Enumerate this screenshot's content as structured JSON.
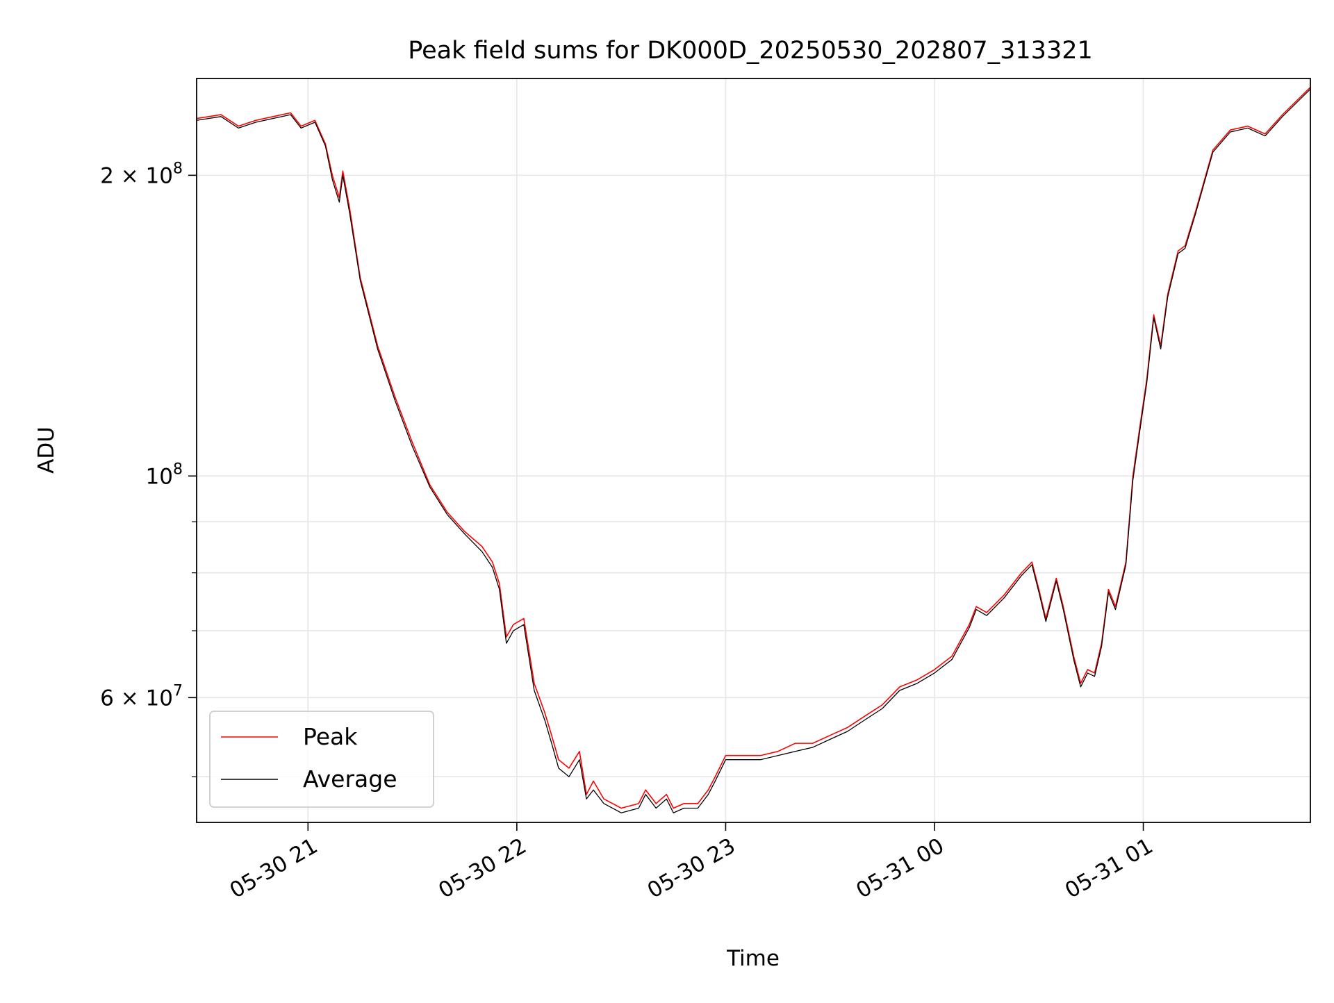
{
  "chart_data": {
    "type": "line",
    "title": "Peak field sums for DK000D_20250530_202807_313321",
    "xlabel": "Time",
    "ylabel": "ADU",
    "yscale": "log",
    "xlim": [
      "2025-05-30 20:28",
      "2025-05-31 01:48"
    ],
    "ylim": [
      45000000,
      250000000
    ],
    "grid": true,
    "legend_position": "lower-left",
    "x_ticks": [
      {
        "value": "2025-05-30 21:00",
        "label": "05-30 21"
      },
      {
        "value": "2025-05-30 22:00",
        "label": "05-30 22"
      },
      {
        "value": "2025-05-30 23:00",
        "label": "05-30 23"
      },
      {
        "value": "2025-05-31 00:00",
        "label": "05-31 00"
      },
      {
        "value": "2025-05-31 01:00",
        "label": "05-31 01"
      }
    ],
    "y_major_ticks": [
      {
        "value": 60000000,
        "label_base": "6 × 10",
        "label_exp": "7"
      },
      {
        "value": 100000000,
        "label_base": "10",
        "label_exp": "8"
      },
      {
        "value": 200000000,
        "label_base": "2 × 10",
        "label_exp": "8"
      }
    ],
    "y_minor_ticks": [
      50000000,
      70000000,
      80000000,
      90000000
    ],
    "series": [
      {
        "name": "Peak",
        "color": "#ff0000",
        "x": [
          "2025-05-30 20:28",
          "2025-05-30 20:35",
          "2025-05-30 20:40",
          "2025-05-30 20:45",
          "2025-05-30 20:50",
          "2025-05-30 20:55",
          "2025-05-30 20:58",
          "2025-05-30 21:02",
          "2025-05-30 21:05",
          "2025-05-30 21:07",
          "2025-05-30 21:09",
          "2025-05-30 21:10",
          "2025-05-30 21:12",
          "2025-05-30 21:15",
          "2025-05-30 21:20",
          "2025-05-30 21:25",
          "2025-05-30 21:30",
          "2025-05-30 21:35",
          "2025-05-30 21:40",
          "2025-05-30 21:45",
          "2025-05-30 21:50",
          "2025-05-30 21:53",
          "2025-05-30 21:55",
          "2025-05-30 21:57",
          "2025-05-30 21:59",
          "2025-05-30 22:02",
          "2025-05-30 22:05",
          "2025-05-30 22:08",
          "2025-05-30 22:10",
          "2025-05-30 22:12",
          "2025-05-30 22:15",
          "2025-05-30 22:18",
          "2025-05-30 22:20",
          "2025-05-30 22:22",
          "2025-05-30 22:25",
          "2025-05-30 22:30",
          "2025-05-30 22:35",
          "2025-05-30 22:37",
          "2025-05-30 22:40",
          "2025-05-30 22:43",
          "2025-05-30 22:45",
          "2025-05-30 22:48",
          "2025-05-30 22:52",
          "2025-05-30 22:55",
          "2025-05-30 22:57",
          "2025-05-30 23:00",
          "2025-05-30 23:05",
          "2025-05-30 23:10",
          "2025-05-30 23:15",
          "2025-05-30 23:20",
          "2025-05-30 23:25",
          "2025-05-30 23:30",
          "2025-05-30 23:35",
          "2025-05-30 23:40",
          "2025-05-30 23:45",
          "2025-05-30 23:50",
          "2025-05-30 23:55",
          "2025-05-31 00:00",
          "2025-05-31 00:05",
          "2025-05-31 00:10",
          "2025-05-31 00:12",
          "2025-05-31 00:15",
          "2025-05-31 00:20",
          "2025-05-31 00:25",
          "2025-05-31 00:28",
          "2025-05-31 00:30",
          "2025-05-31 00:32",
          "2025-05-31 00:35",
          "2025-05-31 00:37",
          "2025-05-31 00:40",
          "2025-05-31 00:42",
          "2025-05-31 00:44",
          "2025-05-31 00:46",
          "2025-05-31 00:48",
          "2025-05-31 00:50",
          "2025-05-31 00:52",
          "2025-05-31 00:55",
          "2025-05-31 00:57",
          "2025-05-31 00:59",
          "2025-05-31 01:01",
          "2025-05-31 01:03",
          "2025-05-31 01:05",
          "2025-05-31 01:07",
          "2025-05-31 01:10",
          "2025-05-31 01:12",
          "2025-05-31 01:15",
          "2025-05-31 01:20",
          "2025-05-31 01:25",
          "2025-05-31 01:30",
          "2025-05-31 01:35",
          "2025-05-31 01:40",
          "2025-05-31 01:48"
        ],
        "y": [
          228000000,
          230000000,
          224000000,
          227000000,
          229000000,
          231000000,
          224000000,
          227000000,
          215000000,
          200000000,
          190000000,
          202000000,
          185000000,
          158000000,
          135000000,
          120000000,
          108000000,
          98000000,
          92000000,
          88000000,
          85000000,
          82000000,
          78000000,
          69000000,
          71000000,
          72000000,
          62000000,
          58000000,
          55000000,
          52000000,
          51000000,
          53000000,
          48000000,
          49500000,
          47500000,
          46500000,
          47000000,
          48500000,
          47000000,
          48000000,
          46500000,
          47000000,
          47000000,
          48500000,
          50000000,
          52500000,
          52500000,
          52500000,
          53000000,
          54000000,
          54000000,
          55000000,
          56000000,
          57500000,
          59000000,
          61500000,
          62500000,
          64000000,
          66000000,
          71000000,
          74000000,
          73000000,
          76000000,
          80000000,
          82000000,
          77000000,
          72000000,
          79000000,
          74000000,
          66000000,
          62000000,
          64000000,
          63500000,
          68000000,
          77000000,
          74000000,
          82000000,
          100000000,
          112000000,
          125000000,
          145000000,
          135000000,
          152000000,
          168000000,
          170000000,
          184000000,
          212000000,
          222000000,
          224000000,
          220000000,
          230000000,
          245000000
        ]
      },
      {
        "name": "Average",
        "color": "#000000",
        "x": [
          "2025-05-30 20:28",
          "2025-05-30 20:35",
          "2025-05-30 20:40",
          "2025-05-30 20:45",
          "2025-05-30 20:50",
          "2025-05-30 20:55",
          "2025-05-30 20:58",
          "2025-05-30 21:02",
          "2025-05-30 21:05",
          "2025-05-30 21:07",
          "2025-05-30 21:09",
          "2025-05-30 21:10",
          "2025-05-30 21:12",
          "2025-05-30 21:15",
          "2025-05-30 21:20",
          "2025-05-30 21:25",
          "2025-05-30 21:30",
          "2025-05-30 21:35",
          "2025-05-30 21:40",
          "2025-05-30 21:45",
          "2025-05-30 21:50",
          "2025-05-30 21:53",
          "2025-05-30 21:55",
          "2025-05-30 21:57",
          "2025-05-30 21:59",
          "2025-05-30 22:02",
          "2025-05-30 22:05",
          "2025-05-30 22:08",
          "2025-05-30 22:10",
          "2025-05-30 22:12",
          "2025-05-30 22:15",
          "2025-05-30 22:18",
          "2025-05-30 22:20",
          "2025-05-30 22:22",
          "2025-05-30 22:25",
          "2025-05-30 22:30",
          "2025-05-30 22:35",
          "2025-05-30 22:37",
          "2025-05-30 22:40",
          "2025-05-30 22:43",
          "2025-05-30 22:45",
          "2025-05-30 22:48",
          "2025-05-30 22:52",
          "2025-05-30 22:55",
          "2025-05-30 22:57",
          "2025-05-30 23:00",
          "2025-05-30 23:05",
          "2025-05-30 23:10",
          "2025-05-30 23:15",
          "2025-05-30 23:20",
          "2025-05-30 23:25",
          "2025-05-30 23:30",
          "2025-05-30 23:35",
          "2025-05-30 23:40",
          "2025-05-30 23:45",
          "2025-05-30 23:50",
          "2025-05-30 23:55",
          "2025-05-31 00:00",
          "2025-05-31 00:05",
          "2025-05-31 00:10",
          "2025-05-31 00:12",
          "2025-05-31 00:15",
          "2025-05-31 00:20",
          "2025-05-31 00:25",
          "2025-05-31 00:28",
          "2025-05-31 00:30",
          "2025-05-31 00:32",
          "2025-05-31 00:35",
          "2025-05-31 00:37",
          "2025-05-31 00:40",
          "2025-05-31 00:42",
          "2025-05-31 00:44",
          "2025-05-31 00:46",
          "2025-05-31 00:48",
          "2025-05-31 00:50",
          "2025-05-31 00:52",
          "2025-05-31 00:55",
          "2025-05-31 00:57",
          "2025-05-31 00:59",
          "2025-05-31 01:01",
          "2025-05-31 01:03",
          "2025-05-31 01:05",
          "2025-05-31 01:07",
          "2025-05-31 01:10",
          "2025-05-31 01:12",
          "2025-05-31 01:15",
          "2025-05-31 01:20",
          "2025-05-31 01:25",
          "2025-05-31 01:30",
          "2025-05-31 01:35",
          "2025-05-31 01:40",
          "2025-05-31 01:48"
        ],
        "y": [
          227000000,
          229000000,
          223000000,
          226000000,
          228000000,
          230000000,
          223000000,
          226000000,
          214000000,
          198000000,
          188000000,
          200000000,
          183000000,
          157000000,
          134000000,
          119000000,
          107000000,
          97500000,
          91500000,
          87500000,
          84000000,
          81000000,
          77000000,
          68000000,
          70000000,
          71000000,
          61000000,
          57000000,
          54000000,
          51000000,
          50000000,
          52000000,
          47500000,
          48500000,
          47000000,
          46000000,
          46500000,
          48000000,
          46500000,
          47500000,
          46000000,
          46500000,
          46500000,
          48000000,
          49500000,
          52000000,
          52000000,
          52000000,
          52500000,
          53000000,
          53500000,
          54500000,
          55500000,
          57000000,
          58500000,
          61000000,
          62000000,
          63500000,
          65500000,
          70500000,
          73500000,
          72500000,
          75500000,
          79500000,
          81500000,
          76500000,
          71500000,
          78500000,
          73500000,
          65500000,
          61500000,
          63500000,
          63000000,
          67500000,
          76500000,
          73500000,
          81500000,
          99000000,
          111000000,
          124000000,
          144000000,
          134000000,
          151000000,
          167000000,
          169000000,
          183000000,
          211000000,
          221000000,
          223000000,
          219000000,
          229000000,
          244000000
        ]
      }
    ]
  }
}
